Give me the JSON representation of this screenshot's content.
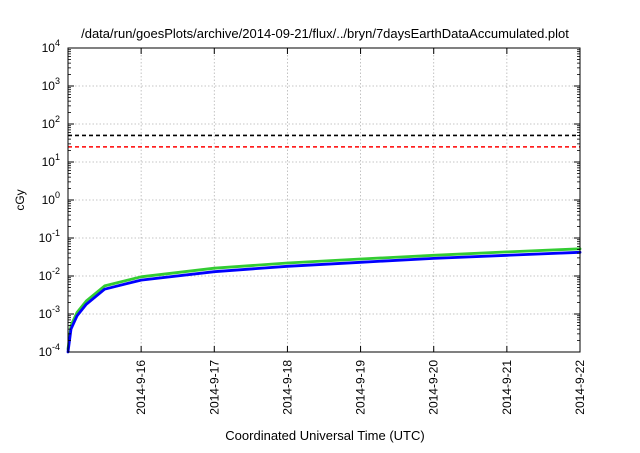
{
  "chart_data": {
    "type": "line",
    "title": "/data/run/goesPlots/archive/2014-09-21/flux/../bryn/7daysEarthDataAccumulated.plot",
    "xlabel": "Coordinated Universal Time (UTC)",
    "ylabel": "cGy",
    "yscale": "log",
    "ylim": [
      0.0001,
      10000
    ],
    "xlim": [
      "2014-09-15",
      "2014-09-22"
    ],
    "x_ticks": [
      "2014-9-16",
      "2014-9-17",
      "2014-9-18",
      "2014-9-19",
      "2014-9-20",
      "2014-9-21",
      "2014-9-22"
    ],
    "y_ticks": [
      {
        "base": "10",
        "exp": "-4",
        "value": 0.0001
      },
      {
        "base": "10",
        "exp": "-3",
        "value": 0.001
      },
      {
        "base": "10",
        "exp": "-2",
        "value": 0.01
      },
      {
        "base": "10",
        "exp": "-1",
        "value": 0.1
      },
      {
        "base": "10",
        "exp": "0",
        "value": 1
      },
      {
        "base": "10",
        "exp": "1",
        "value": 10
      },
      {
        "base": "10",
        "exp": "2",
        "value": 100
      },
      {
        "base": "10",
        "exp": "3",
        "value": 1000
      },
      {
        "base": "10",
        "exp": "4",
        "value": 10000
      }
    ],
    "grid": true,
    "series": [
      {
        "color": "#33cc33",
        "x": [
          "2014-09-15 00:00",
          "2014-09-15 01:00",
          "2014-09-15 03:00",
          "2014-09-15 06:00",
          "2014-09-15 12:00",
          "2014-09-16 00:00",
          "2014-09-17 00:00",
          "2014-09-18 00:00",
          "2014-09-19 00:00",
          "2014-09-20 00:00",
          "2014-09-21 00:00",
          "2014-09-22 00:00"
        ],
        "y": [
          0.00012,
          0.0005,
          0.0011,
          0.0022,
          0.0055,
          0.0095,
          0.016,
          0.022,
          0.028,
          0.035,
          0.043,
          0.052
        ]
      },
      {
        "color": "#0000ff",
        "x": [
          "2014-09-15 00:00",
          "2014-09-15 01:00",
          "2014-09-15 03:00",
          "2014-09-15 06:00",
          "2014-09-15 12:00",
          "2014-09-16 00:00",
          "2014-09-17 00:00",
          "2014-09-18 00:00",
          "2014-09-19 00:00",
          "2014-09-20 00:00",
          "2014-09-21 00:00",
          "2014-09-22 00:00"
        ],
        "y": [
          0.0001,
          0.0004,
          0.0009,
          0.0018,
          0.0045,
          0.0078,
          0.013,
          0.018,
          0.023,
          0.029,
          0.035,
          0.042
        ]
      }
    ],
    "thresholds": [
      {
        "y": 50,
        "color": "#000000",
        "style": "dashed"
      },
      {
        "y": 25,
        "color": "#ff0000",
        "style": "dashed"
      }
    ]
  }
}
